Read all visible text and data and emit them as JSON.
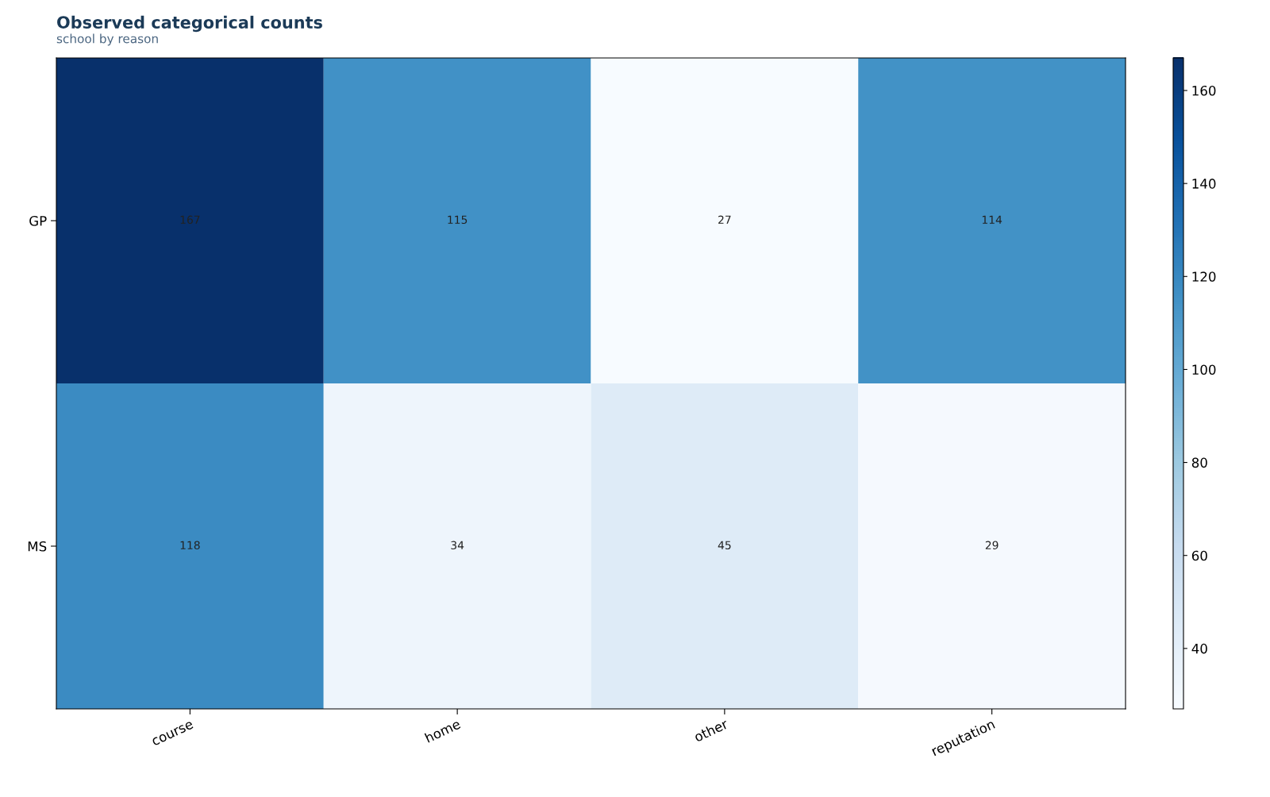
{
  "chart_data": {
    "type": "heatmap",
    "title": "Observed categorical counts",
    "subtitle": "school by reason",
    "categories": [
      "course",
      "home",
      "other",
      "reputation"
    ],
    "y_categories": [
      "GP",
      "MS"
    ],
    "cells": [
      [
        167,
        115,
        27,
        114
      ],
      [
        118,
        34,
        45,
        29
      ]
    ],
    "clim": [
      27,
      167
    ],
    "cticks": [
      40,
      60,
      80,
      100,
      120,
      140,
      160
    ],
    "data_labels": true
  }
}
